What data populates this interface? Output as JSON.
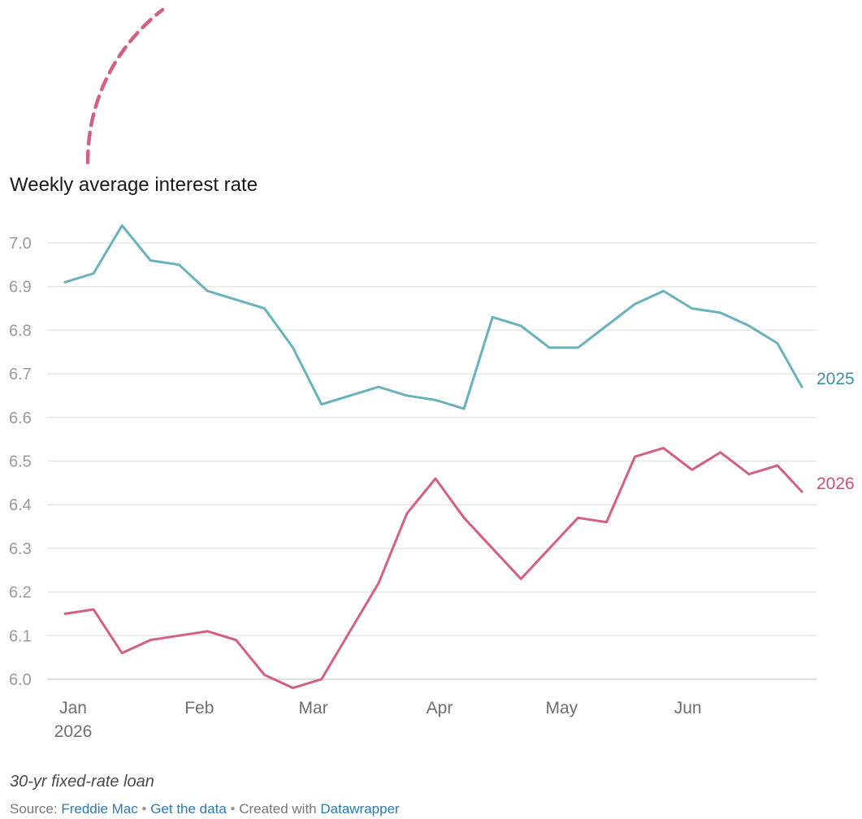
{
  "chart_data": {
    "type": "line",
    "title": "Weekly average interest rate",
    "ylim": [
      5.98,
      7.04
    ],
    "y_ticks": [
      "6.0",
      "6.1",
      "6.2",
      "6.3",
      "6.4",
      "6.5",
      "6.6",
      "6.7",
      "6.8",
      "6.9",
      "7.0"
    ],
    "x_ticks": [
      {
        "label": "Jan",
        "sublabel": "2026",
        "date": "2026-01-01"
      },
      {
        "label": "Feb",
        "sublabel": "",
        "date": "2026-02-01"
      },
      {
        "label": "Mar",
        "sublabel": "",
        "date": "2026-03-01"
      },
      {
        "label": "Apr",
        "sublabel": "",
        "date": "2026-04-01"
      },
      {
        "label": "May",
        "sublabel": "",
        "date": "2026-05-01"
      },
      {
        "label": "Jun",
        "sublabel": "",
        "date": "2026-06-01"
      }
    ],
    "x_range": [
      "2026-01-01",
      "2026-07-02"
    ],
    "grid": true,
    "series": [
      {
        "name": "2025",
        "color": "#67b2bd",
        "label_color": "#3f8f9a",
        "points": [
          [
            "2026-01-02",
            6.91
          ],
          [
            "2026-01-09",
            6.93
          ],
          [
            "2026-01-16",
            7.04
          ],
          [
            "2026-01-23",
            6.96
          ],
          [
            "2026-01-30",
            6.95
          ],
          [
            "2026-02-06",
            6.89
          ],
          [
            "2026-02-13",
            6.87
          ],
          [
            "2026-02-20",
            6.85
          ],
          [
            "2026-02-27",
            6.76
          ],
          [
            "2026-03-06",
            6.63
          ],
          [
            "2026-03-13",
            6.65
          ],
          [
            "2026-03-20",
            6.67
          ],
          [
            "2026-03-27",
            6.65
          ],
          [
            "2026-04-03",
            6.64
          ],
          [
            "2026-04-10",
            6.62
          ],
          [
            "2026-04-17",
            6.83
          ],
          [
            "2026-04-24",
            6.81
          ],
          [
            "2026-05-01",
            6.76
          ],
          [
            "2026-05-08",
            6.76
          ],
          [
            "2026-05-15",
            6.81
          ],
          [
            "2026-05-22",
            6.86
          ],
          [
            "2026-05-29",
            6.89
          ],
          [
            "2026-06-05",
            6.85
          ],
          [
            "2026-06-12",
            6.84
          ],
          [
            "2026-06-19",
            6.81
          ],
          [
            "2026-06-26",
            6.77
          ],
          [
            "2026-07-02",
            6.67
          ]
        ]
      },
      {
        "name": "2026",
        "color": "#d35f85",
        "label_color": "#c9527c",
        "points": [
          [
            "2026-01-02",
            6.15
          ],
          [
            "2026-01-09",
            6.16
          ],
          [
            "2026-01-16",
            6.06
          ],
          [
            "2026-01-23",
            6.09
          ],
          [
            "2026-01-30",
            6.1
          ],
          [
            "2026-02-06",
            6.11
          ],
          [
            "2026-02-13",
            6.09
          ],
          [
            "2026-02-20",
            6.01
          ],
          [
            "2026-02-27",
            5.98
          ],
          [
            "2026-03-06",
            6.0
          ],
          [
            "2026-03-13",
            6.11
          ],
          [
            "2026-03-20",
            6.22
          ],
          [
            "2026-03-27",
            6.38
          ],
          [
            "2026-04-03",
            6.46
          ],
          [
            "2026-04-10",
            6.37
          ],
          [
            "2026-04-24",
            6.23
          ],
          [
            "2026-05-08",
            6.37
          ],
          [
            "2026-05-15",
            6.36
          ],
          [
            "2026-05-22",
            6.51
          ],
          [
            "2026-05-29",
            6.53
          ],
          [
            "2026-06-05",
            6.48
          ],
          [
            "2026-06-12",
            6.52
          ],
          [
            "2026-06-19",
            6.47
          ],
          [
            "2026-06-26",
            6.49
          ],
          [
            "2026-07-02",
            6.43
          ]
        ]
      }
    ],
    "annotation": {
      "color": "#d35f85",
      "style": "dashed-arc"
    }
  },
  "notes": "30-yr fixed-rate loan",
  "footer": {
    "source_prefix": "Source: ",
    "source_link": "Freddie Mac",
    "sep": " • ",
    "data_link": "Get the data",
    "created_prefix": "Created with ",
    "created_link": "Datawrapper"
  }
}
